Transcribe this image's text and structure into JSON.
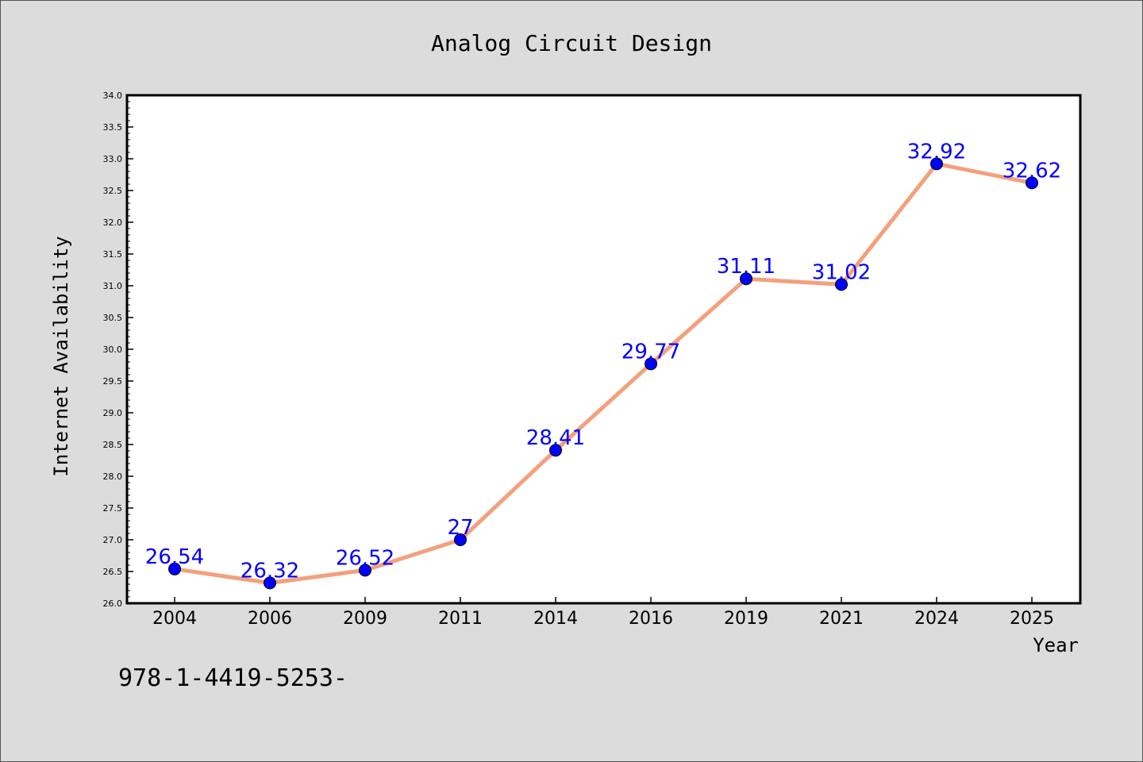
{
  "chart_data": {
    "type": "line",
    "title": "Analog Circuit Design",
    "xlabel": "Year",
    "ylabel": "Internet Availability",
    "categories": [
      "2004",
      "2006",
      "2009",
      "2011",
      "2014",
      "2016",
      "2019",
      "2021",
      "2024",
      "2025"
    ],
    "series": [
      {
        "values": [
          26.54,
          26.32,
          26.52,
          27,
          28.41,
          29.77,
          31.11,
          31.02,
          32.92,
          32.62
        ],
        "data_labels": [
          "26.54",
          "26.32",
          "26.52",
          "27",
          "28.41",
          "29.77",
          "31.11",
          "31.02",
          "32.92",
          "32.62"
        ],
        "line_color": "#f4a07c",
        "marker_color": "#0000ff"
      }
    ],
    "ylim": [
      26.0,
      34.0
    ],
    "yticks": [
      "26.0",
      "26.5",
      "27.0",
      "27.5",
      "28.0",
      "28.5",
      "29.0",
      "29.5",
      "30.0",
      "30.5",
      "31.0",
      "31.5",
      "32.0",
      "32.5",
      "33.0",
      "33.5",
      "34.0"
    ],
    "grid": false,
    "legend": "none"
  },
  "footer": {
    "text": "978-1-4419-5253-"
  },
  "colors": {
    "background": "#dcdcdc",
    "plot_background": "#ffffff",
    "data_label": "#0000ff"
  }
}
